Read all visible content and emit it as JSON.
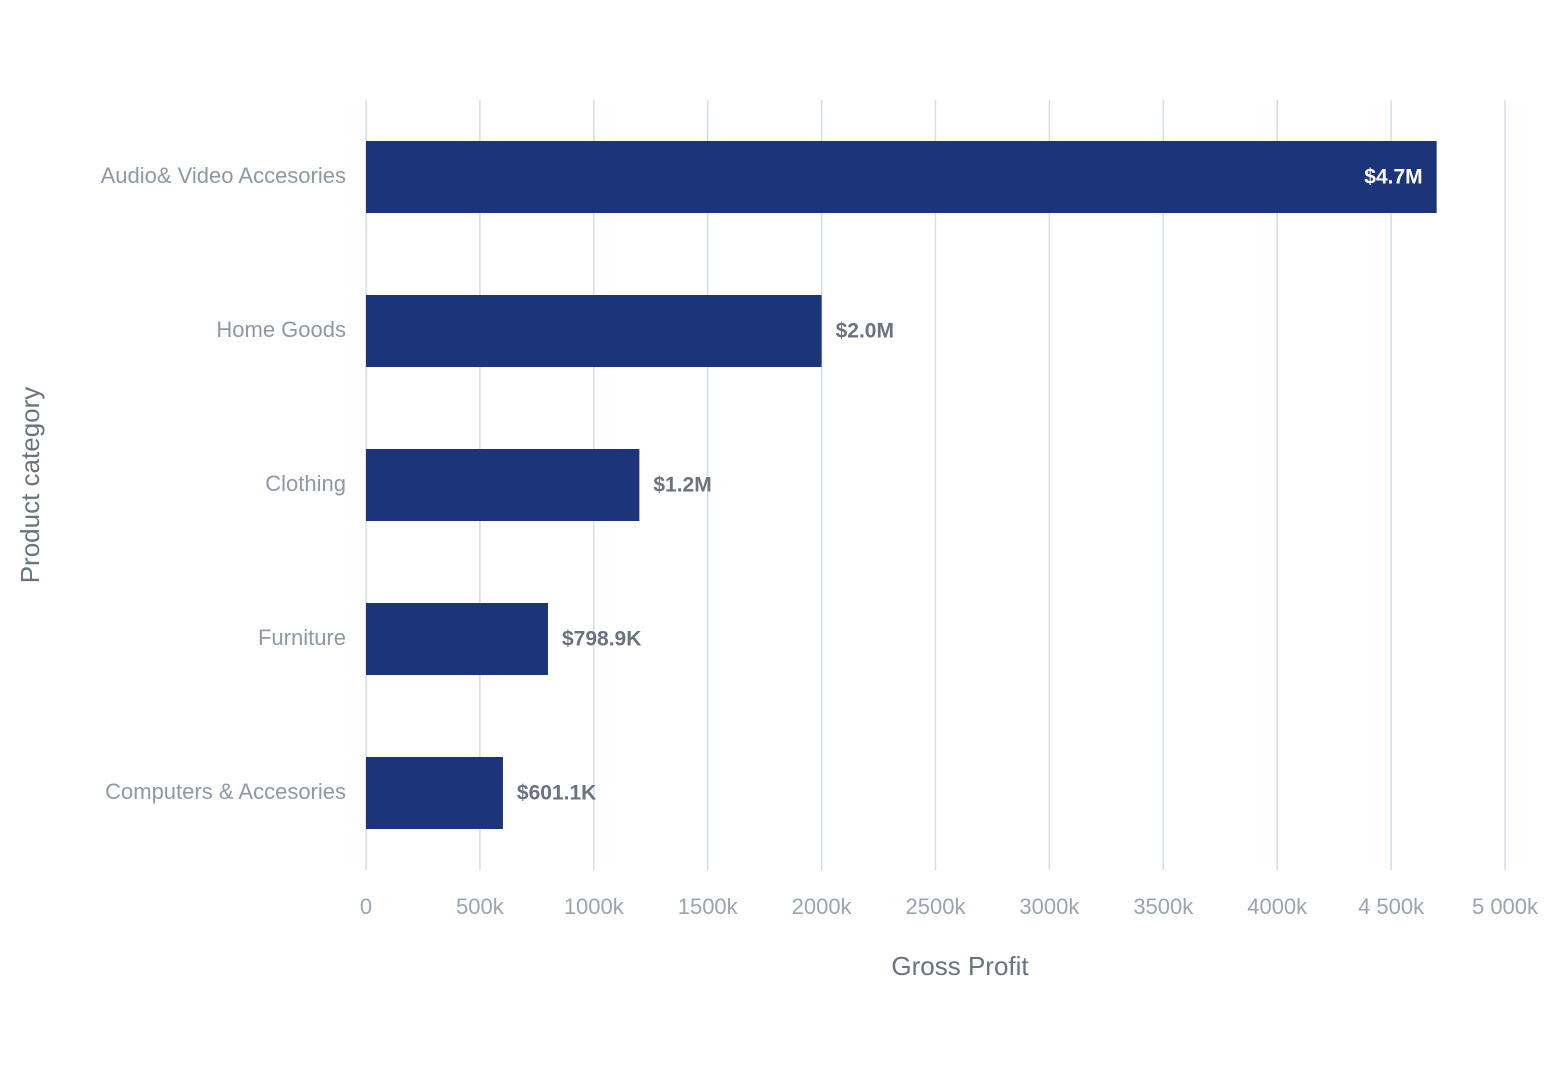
{
  "chart_data": {
    "type": "bar",
    "orientation": "horizontal",
    "x_label": "Gross Profit",
    "y_label": "Product category",
    "categories": [
      "Audio& Video Accesories",
      "Home Goods",
      "Clothing",
      "Furniture",
      "Computers & Accesories"
    ],
    "values": [
      4700000,
      2000000,
      1200000,
      798900,
      601100
    ],
    "value_labels": [
      "$4.7M",
      "$2.0M",
      "$1.2M",
      "$798.9K",
      "$601.1K"
    ],
    "color": "#1c347a",
    "xlim": [
      0,
      5000000
    ],
    "xticks": [
      0,
      {
        "value": 500000,
        "label": "500k"
      },
      {
        "value": 1000000,
        "label": "1000k"
      },
      {
        "value": 1500000,
        "label": "1500k"
      },
      {
        "value": 2000000,
        "label": "2000k"
      },
      {
        "value": 2500000,
        "label": "2500k"
      },
      {
        "value": 3000000,
        "label": "3000k"
      },
      {
        "value": 3500000,
        "label": "3500k"
      },
      {
        "value": 4000000,
        "label": "4000k"
      },
      {
        "value": 4500000,
        "label": "4 500k"
      },
      {
        "value": 5000000,
        "label": "5 000k"
      }
    ],
    "grid": true
  }
}
